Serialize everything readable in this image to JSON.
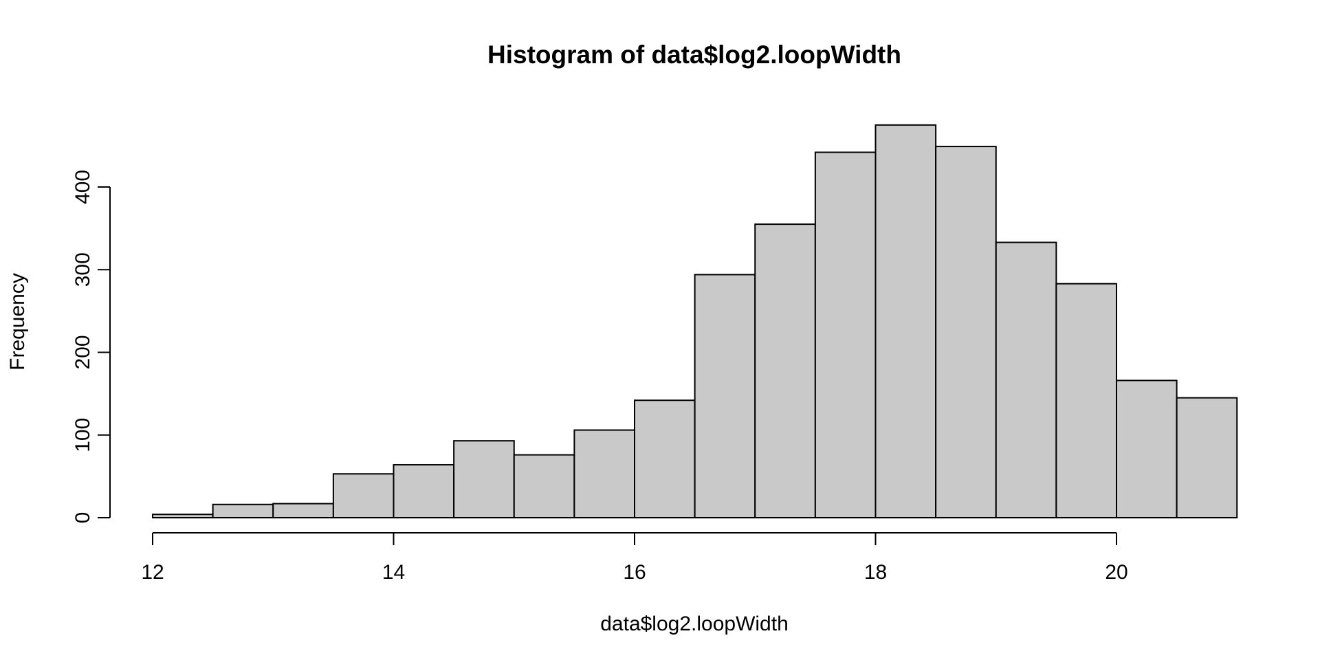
{
  "chart_data": {
    "type": "bar",
    "subtype": "histogram",
    "title": "Histogram of data$log2.loopWidth",
    "xlabel": "data$log2.loopWidth",
    "ylabel": "Frequency",
    "bin_edges": [
      12,
      12.5,
      13,
      13.5,
      14,
      14.5,
      15,
      15.5,
      16,
      16.5,
      17,
      17.5,
      18,
      18.5,
      19,
      19.5,
      20,
      20.5,
      21
    ],
    "values": [
      4,
      16,
      17,
      53,
      64,
      93,
      76,
      106,
      142,
      294,
      355,
      442,
      475,
      449,
      333,
      283,
      166,
      145
    ],
    "bar_fill": "#c9c9c9",
    "bar_stroke": "#000000",
    "xlim": [
      12,
      21
    ],
    "ylim": [
      0,
      475
    ],
    "x_ticks": [
      12,
      14,
      16,
      18,
      20
    ],
    "x_tick_labels": [
      "12",
      "14",
      "16",
      "18",
      "20"
    ],
    "y_ticks": [
      0,
      100,
      200,
      300,
      400
    ],
    "y_tick_labels": [
      "0",
      "100",
      "200",
      "300",
      "400"
    ],
    "grid": false,
    "legend": "none"
  }
}
